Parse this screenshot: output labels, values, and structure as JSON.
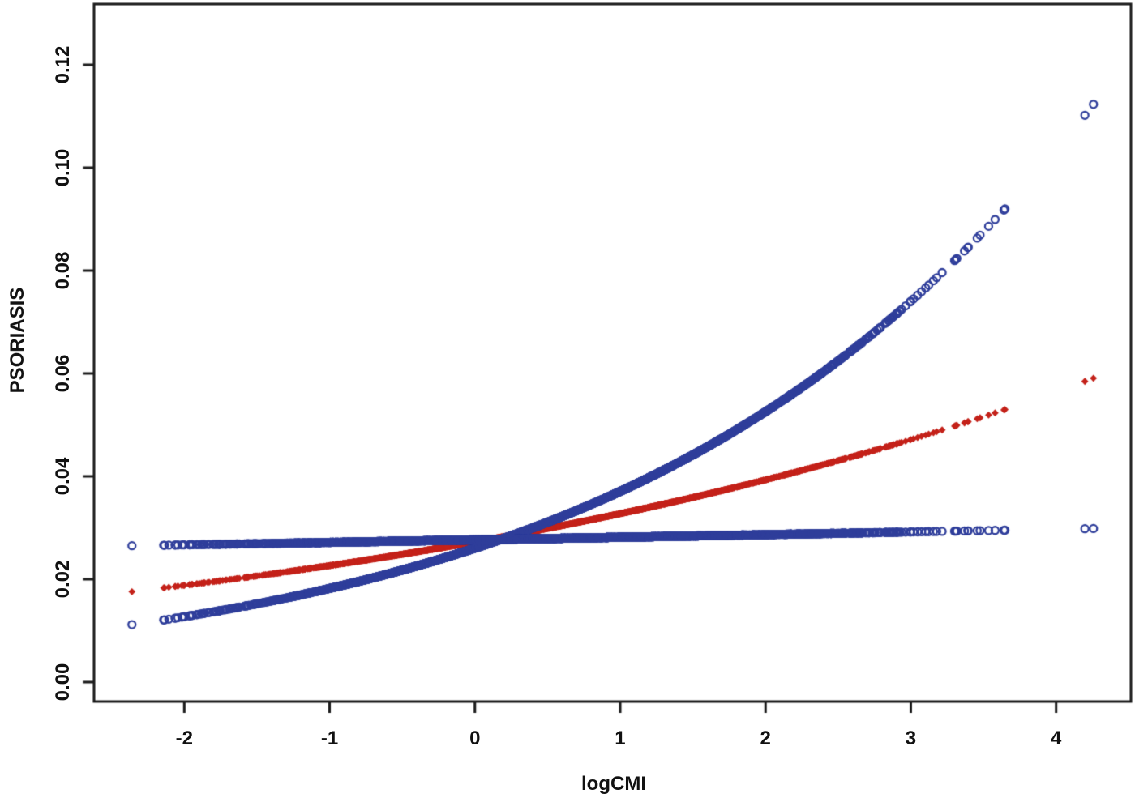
{
  "figure": {
    "background": "#ffffff",
    "axis_color": "#1b1b1b",
    "text_color": "#111111"
  },
  "chart_data": {
    "type": "scatter",
    "title": "",
    "xlabel": "logCMI",
    "ylabel": "PSORIASIS",
    "xlim": [
      -2.621,
      4.515
    ],
    "ylim": [
      -0.00378,
      0.13181
    ],
    "grid": false,
    "legend": "none",
    "x_ticks": [
      {
        "value": -2,
        "label": "-2"
      },
      {
        "value": -1,
        "label": "-1"
      },
      {
        "value": 0,
        "label": "0"
      },
      {
        "value": 1,
        "label": "1"
      },
      {
        "value": 2,
        "label": "2"
      },
      {
        "value": 3,
        "label": "3"
      },
      {
        "value": 4,
        "label": "4"
      }
    ],
    "y_ticks": [
      {
        "value": 0.0,
        "label": "0.00"
      },
      {
        "value": 0.02,
        "label": "0.02"
      },
      {
        "value": 0.04,
        "label": "0.04"
      },
      {
        "value": 0.06,
        "label": "0.06"
      },
      {
        "value": 0.08,
        "label": "0.08"
      },
      {
        "value": 0.1,
        "label": "0.10"
      },
      {
        "value": 0.12,
        "label": "0.12"
      }
    ],
    "series": [
      {
        "name": "steep-blue-curve",
        "marker": "open-circle",
        "color": "#2f3e9b",
        "z_order": 2,
        "model": {
          "type": "logistic",
          "intercept": -3.622,
          "slope": 0.3652
        },
        "anchor_points": [
          [
            -2.36,
            0.0112
          ],
          [
            -2,
            0.0127
          ],
          [
            -1,
            0.0182
          ],
          [
            0,
            0.026
          ],
          [
            1,
            0.0371
          ],
          [
            2,
            0.0526
          ],
          [
            3,
            0.074
          ],
          [
            3.6,
            0.0905
          ],
          [
            4.2,
            0.1103
          ],
          [
            4.26,
            0.1125
          ]
        ]
      },
      {
        "name": "red-middle-curve",
        "marker": "filled-diamond",
        "color": "#c42119",
        "z_order": 1,
        "model": {
          "type": "logistic",
          "intercept": -3.575,
          "slope": 0.1896
        },
        "anchor_points": [
          [
            -2.36,
            0.0176
          ],
          [
            -2,
            0.0188
          ],
          [
            -1,
            0.0227
          ],
          [
            0,
            0.0273
          ],
          [
            1,
            0.0327
          ],
          [
            2,
            0.0393
          ],
          [
            3,
            0.047
          ],
          [
            3.6,
            0.0525
          ],
          [
            4.2,
            0.0585
          ],
          [
            4.26,
            0.0591
          ]
        ]
      },
      {
        "name": "flat-blue-curve",
        "marker": "open-circle",
        "color": "#2f3e9b",
        "z_order": 3,
        "model": {
          "type": "logistic",
          "intercept": -3.56,
          "slope": 0.0185
        },
        "anchor_points": [
          [
            -2.36,
            0.0265
          ],
          [
            -2,
            0.0266
          ],
          [
            -1,
            0.0271
          ],
          [
            0,
            0.0276
          ],
          [
            1,
            0.0281
          ],
          [
            2,
            0.0286
          ],
          [
            3,
            0.0291
          ],
          [
            3.6,
            0.0294
          ],
          [
            4.2,
            0.0298
          ],
          [
            4.26,
            0.0298
          ]
        ]
      }
    ],
    "x_points": {
      "bulk": {
        "n": 3000,
        "mean": 0.55,
        "sd": 1.05,
        "min": -2.22,
        "max": 3.66,
        "seed": 42
      },
      "isolated": [
        -2.36,
        4.198,
        4.257
      ]
    }
  }
}
